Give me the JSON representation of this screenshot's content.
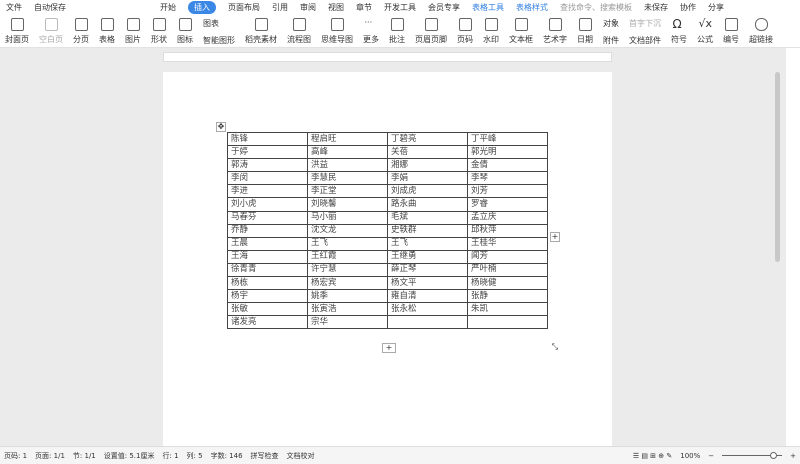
{
  "titlebar": {
    "file": "文件",
    "autosave": "自动保存",
    "tabs": [
      "开始",
      "插入",
      "页面布局",
      "引用",
      "审阅",
      "视图",
      "章节",
      "开发工具",
      "会员专享"
    ],
    "active_tab": "插入",
    "context_tabs": [
      "表格工具",
      "表格样式"
    ],
    "search": "查找命令、搜索模板",
    "unsaved": "未保存",
    "collab": "协作",
    "share": "分享"
  },
  "ribbon": {
    "items": [
      "封面页",
      "空白页",
      "分页",
      "表格",
      "图片",
      "形状",
      "图标"
    ],
    "stack1": [
      "图表",
      "智能图形"
    ],
    "items2": [
      "稻壳素材",
      "流程图",
      "思维导图",
      "更多",
      "批注",
      "页眉页脚",
      "页码",
      "水印",
      "文本框",
      "艺术字",
      "日期"
    ],
    "stack2": [
      "对象",
      "附件"
    ],
    "stack3": [
      "首字下沉",
      "文档部件"
    ],
    "items3": [
      "符号",
      "公式",
      "编号",
      "超链接"
    ]
  },
  "table": [
    [
      "陈锋",
      "程启旺",
      "丁碧亮",
      "丁平峰"
    ],
    [
      "于婷",
      "高峰",
      "关蓓",
      "郭光明"
    ],
    [
      "郭涛",
      "洪益",
      "湘娜",
      "金倩"
    ],
    [
      "李闵",
      "李慧民",
      "李娟",
      "李琴"
    ],
    [
      "李进",
      "李正堂",
      "刘成虎",
      "刘芳"
    ],
    [
      "刘小虎",
      "刘晓馨",
      "路永曲",
      "罗睿"
    ],
    [
      "马春芬",
      "马小丽",
      "毛斌",
      "孟立庆"
    ],
    [
      "乔静",
      "沈文龙",
      "史轶群",
      "邱秋萍"
    ],
    [
      "王晨",
      "王飞",
      "王飞",
      "王桂华"
    ],
    [
      "王海",
      "王红霞",
      "王继勇",
      "闻芳"
    ],
    [
      "徐青青",
      "许宁慧",
      "薛正琴",
      "严叶楠"
    ],
    [
      "杨栋",
      "杨宏宾",
      "杨文平",
      "杨晓健"
    ],
    [
      "杨宇",
      "姚季",
      "雍自清",
      "张静"
    ],
    [
      "张敏",
      "张寅浩",
      "张永松",
      "朱凯"
    ],
    [
      "诸发亮",
      "宗华",
      "",
      ""
    ]
  ],
  "status": {
    "page": "页码: 1",
    "pages": "页面: 1/1",
    "section": "节: 1/1",
    "setting": "设置值: 5.1厘米",
    "row": "行: 1",
    "col": "列: 5",
    "words": "字数: 146",
    "spell": "拼写检查",
    "proof": "文档校对",
    "zoom": "100%"
  }
}
